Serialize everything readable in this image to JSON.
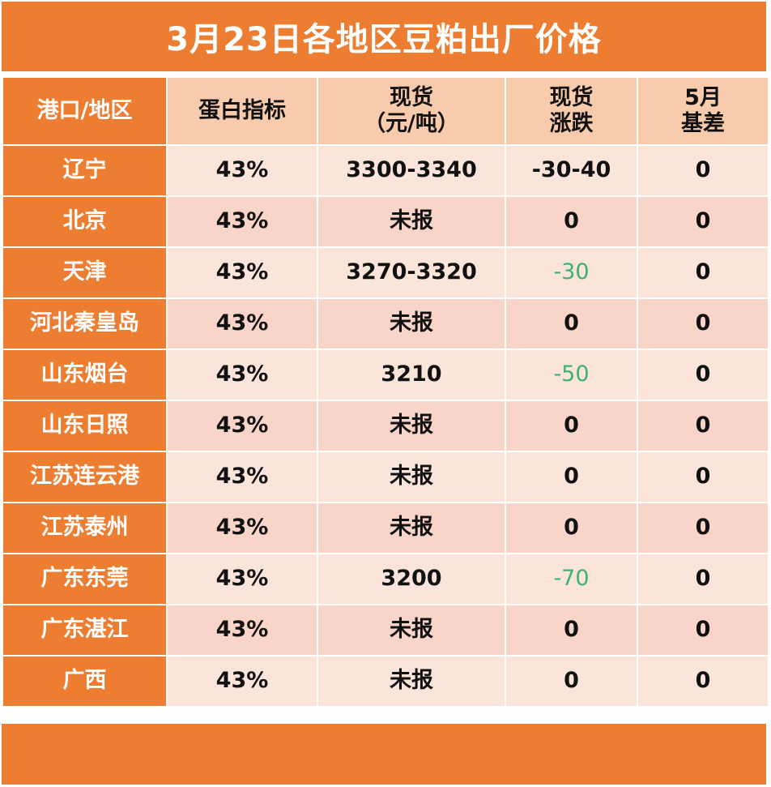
{
  "title": "3月23日各地区豆粕出厂价格",
  "headers": {
    "region": "港口/地区",
    "protein": "蛋白指标",
    "spot_line1": "现货",
    "spot_line2": "（元/吨）",
    "change_line1": "现货",
    "change_line2": "涨跌",
    "basis_line1": "5月",
    "basis_line2": "基差"
  },
  "rows": [
    {
      "region": "辽宁",
      "protein": "43%",
      "spot": "3300-3340",
      "change": "-30-40",
      "change_color": "#111111",
      "basis": "0"
    },
    {
      "region": "北京",
      "protein": "43%",
      "spot": "未报",
      "change": "0",
      "change_color": "#111111",
      "basis": "0"
    },
    {
      "region": "天津",
      "protein": "43%",
      "spot": "3270-3320",
      "change": "-30",
      "change_color": "#3CB371",
      "basis": "0"
    },
    {
      "region": "河北秦皇岛",
      "protein": "43%",
      "spot": "未报",
      "change": "0",
      "change_color": "#111111",
      "basis": "0"
    },
    {
      "region": "山东烟台",
      "protein": "43%",
      "spot": "3210",
      "change": "-50",
      "change_color": "#3CB371",
      "basis": "0"
    },
    {
      "region": "山东日照",
      "protein": "43%",
      "spot": "未报",
      "change": "0",
      "change_color": "#111111",
      "basis": "0"
    },
    {
      "region": "江苏连云港",
      "protein": "43%",
      "spot": "未报",
      "change": "0",
      "change_color": "#111111",
      "basis": "0"
    },
    {
      "region": "江苏泰州",
      "protein": "43%",
      "spot": "未报",
      "change": "0",
      "change_color": "#111111",
      "basis": "0"
    },
    {
      "region": "广东东莞",
      "protein": "43%",
      "spot": "3200",
      "change": "-70",
      "change_color": "#3CB371",
      "basis": "0"
    },
    {
      "region": "广东湛江",
      "protein": "43%",
      "spot": "未报",
      "change": "0",
      "change_color": "#111111",
      "basis": "0"
    },
    {
      "region": "广西",
      "protein": "43%",
      "spot": "未报",
      "change": "0",
      "change_color": "#111111",
      "basis": "0"
    }
  ],
  "colors": {
    "accent": "#ED7D31",
    "header_fill": "#F8CBAD",
    "row_light": "#FBE4DA",
    "row_dark": "#F8D5C8",
    "decrease": "#3CB371"
  }
}
